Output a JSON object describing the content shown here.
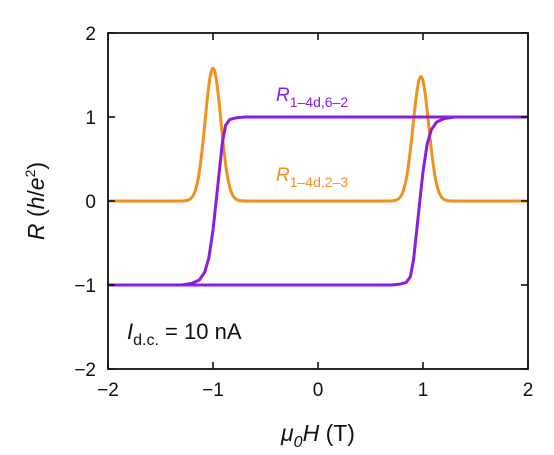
{
  "chart_data": {
    "type": "line",
    "xlabel": {
      "sym": "μ",
      "sub": "0",
      "sym2": "H",
      "unit": " (T)"
    },
    "ylabel": {
      "sym": "R",
      "open": " (",
      "h": "h",
      "slash": "/",
      "e": "e",
      "sup": "2",
      "close": ")"
    },
    "xlim": [
      -2,
      2
    ],
    "ylim": [
      -2,
      2
    ],
    "xticks": [
      -2,
      -1,
      0,
      1,
      2
    ],
    "yticks": [
      -2,
      -1,
      0,
      1,
      2
    ],
    "xtick_labels": [
      "−2",
      "−1",
      "0",
      "1",
      "2"
    ],
    "ytick_labels": [
      "−2",
      "−1",
      "0",
      "1",
      "2"
    ],
    "grid": false,
    "annotation": {
      "sym": "I",
      "sub": "d.c.",
      "text": " = 10 nA"
    },
    "series": [
      {
        "name_main": "R",
        "name_sub": "1–4d,6–2",
        "color": "#8a1ee0",
        "kind": "hysteresis-loop",
        "branches": [
          {
            "direction": "sweep-up",
            "points": [
              [
                -2.0,
                -1.0
              ],
              [
                0.7,
                -1.0
              ],
              [
                0.78,
                -0.99
              ],
              [
                0.84,
                -0.97
              ],
              [
                0.88,
                -0.9
              ],
              [
                0.91,
                -0.7
              ],
              [
                0.94,
                -0.35
              ],
              [
                0.97,
                0.0
              ],
              [
                1.0,
                0.35
              ],
              [
                1.04,
                0.68
              ],
              [
                1.08,
                0.85
              ],
              [
                1.13,
                0.94
              ],
              [
                1.2,
                0.98
              ],
              [
                1.3,
                1.0
              ],
              [
                2.0,
                1.0
              ]
            ]
          },
          {
            "direction": "sweep-down",
            "points": [
              [
                2.0,
                1.0
              ],
              [
                -0.7,
                1.0
              ],
              [
                -0.78,
                0.99
              ],
              [
                -0.84,
                0.97
              ],
              [
                -0.88,
                0.9
              ],
              [
                -0.91,
                0.7
              ],
              [
                -0.94,
                0.35
              ],
              [
                -0.97,
                0.0
              ],
              [
                -1.0,
                -0.35
              ],
              [
                -1.04,
                -0.68
              ],
              [
                -1.08,
                -0.85
              ],
              [
                -1.13,
                -0.94
              ],
              [
                -1.2,
                -0.98
              ],
              [
                -1.3,
                -1.0
              ],
              [
                -2.0,
                -1.0
              ]
            ]
          }
        ]
      },
      {
        "name_main": "R",
        "name_sub": "1–4d,2–3",
        "color": "#f0901e",
        "kind": "peaks",
        "baseline": 0.0,
        "peaks": [
          {
            "center": -1.0,
            "height": 1.58,
            "width": 0.075
          },
          {
            "center": 0.98,
            "height": 1.48,
            "width": 0.075
          }
        ]
      }
    ]
  }
}
